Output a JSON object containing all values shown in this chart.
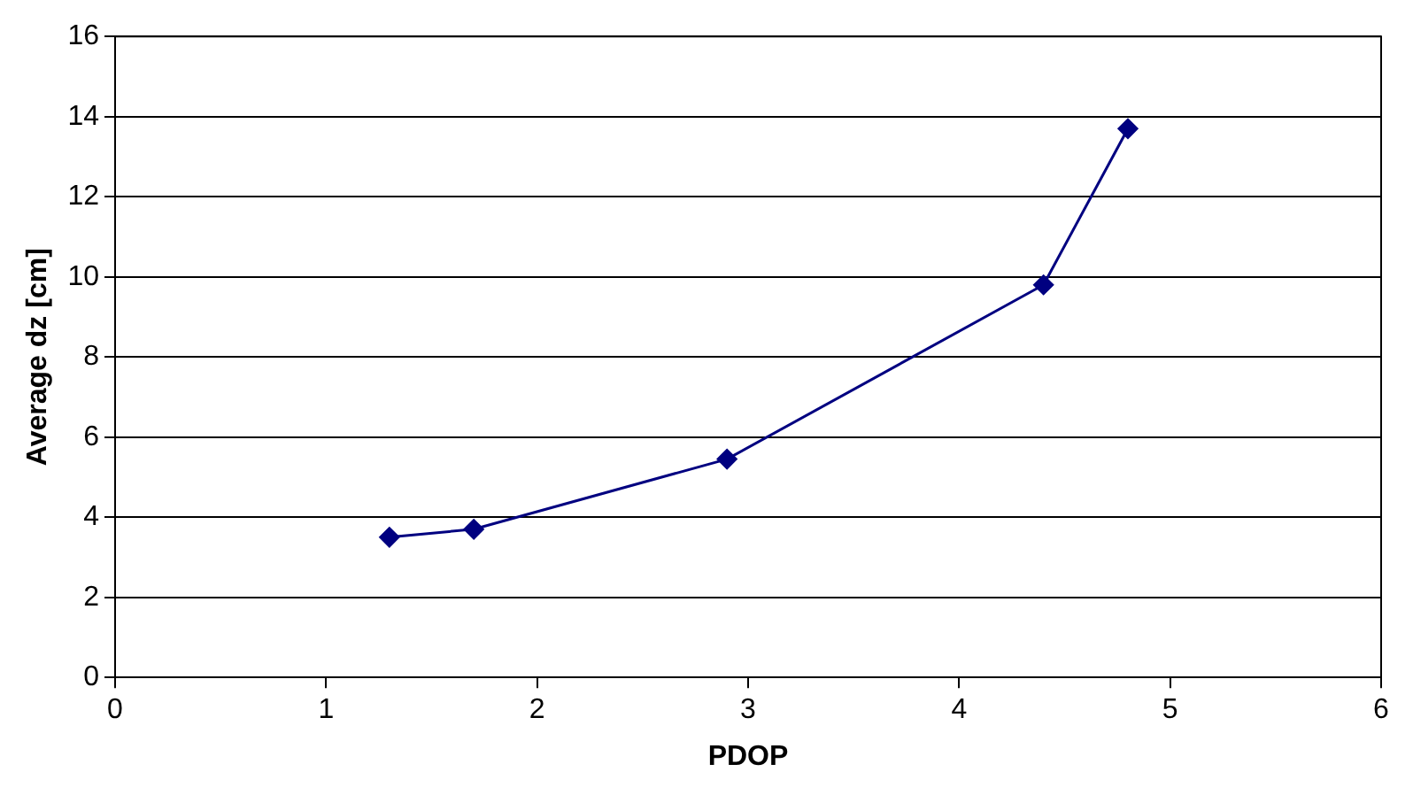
{
  "chart_data": {
    "type": "line",
    "xlabel": "PDOP",
    "ylabel": "Average dz [cm]",
    "x": [
      1.3,
      1.7,
      2.9,
      4.4,
      4.8
    ],
    "series": [
      {
        "color": "#000080",
        "values": [
          3.5,
          3.7,
          5.45,
          9.8,
          13.7
        ]
      }
    ],
    "xlim": [
      0,
      6
    ],
    "xticks": [
      0,
      1,
      2,
      3,
      4,
      5,
      6
    ],
    "ylim": [
      0,
      16
    ],
    "yticks": [
      0,
      2,
      4,
      6,
      8,
      10,
      12,
      14,
      16
    ],
    "grid": "y",
    "legend": false,
    "marker": "diamond",
    "line_style": "solid"
  }
}
